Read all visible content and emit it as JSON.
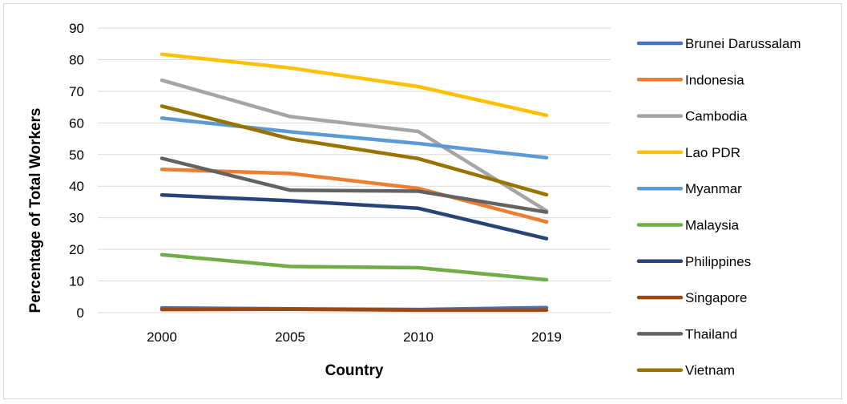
{
  "chart_data": {
    "type": "line",
    "title": "",
    "xlabel": "Country",
    "ylabel": "Percentage of Total Workers",
    "x": [
      "2000",
      "2005",
      "2010",
      "2019"
    ],
    "ylim": [
      0,
      90
    ],
    "yticks": [
      "0",
      "10",
      "20",
      "30",
      "40",
      "50",
      "60",
      "70",
      "80",
      "90"
    ],
    "grid": true,
    "legend_position": "right",
    "series": [
      {
        "name": "Brunei Darussalam",
        "color": "#4472C4",
        "values": [
          1.5,
          1.2,
          1.0,
          1.6
        ]
      },
      {
        "name": "Indonesia",
        "color": "#ED7D31",
        "values": [
          45.3,
          44.0,
          39.3,
          28.7
        ]
      },
      {
        "name": "Cambodia",
        "color": "#A5A5A5",
        "values": [
          73.5,
          62.0,
          57.3,
          32.2
        ]
      },
      {
        "name": "Lao PDR",
        "color": "#FFC000",
        "values": [
          81.7,
          77.4,
          71.5,
          62.4
        ]
      },
      {
        "name": "Myanmar",
        "color": "#5B9BD5",
        "values": [
          61.5,
          57.2,
          53.5,
          49.0
        ]
      },
      {
        "name": "Malaysia",
        "color": "#70AD47",
        "values": [
          18.3,
          14.6,
          14.2,
          10.4
        ]
      },
      {
        "name": "Philippines",
        "color": "#264478",
        "values": [
          37.2,
          35.4,
          33.0,
          23.4
        ]
      },
      {
        "name": "Singapore",
        "color": "#9E480E",
        "values": [
          1.0,
          1.1,
          0.8,
          0.8
        ]
      },
      {
        "name": "Thailand",
        "color": "#636363",
        "values": [
          48.8,
          38.7,
          38.4,
          31.8
        ]
      },
      {
        "name": "Vietnam",
        "color": "#997300",
        "values": [
          65.3,
          55.0,
          48.7,
          37.3
        ]
      }
    ]
  }
}
